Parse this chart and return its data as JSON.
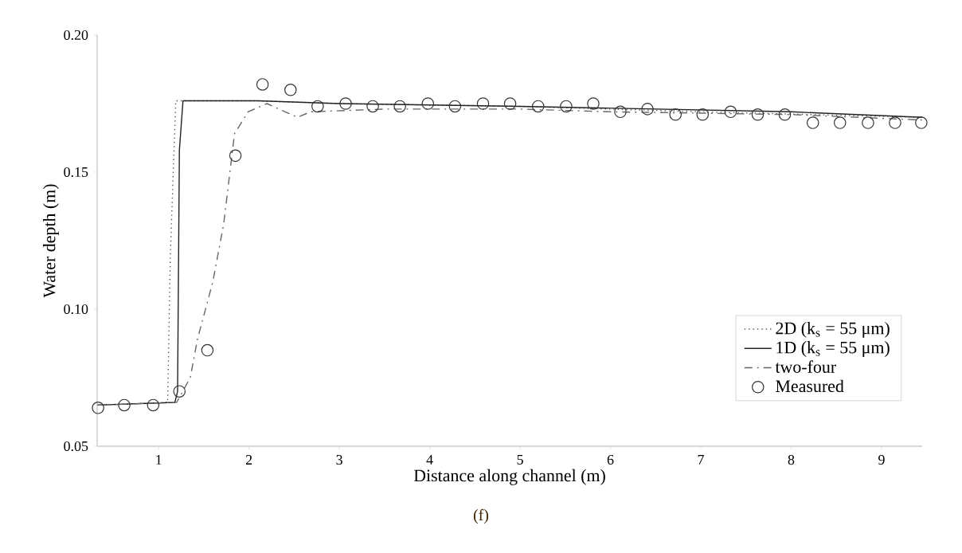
{
  "chart_data": {
    "type": "line",
    "xlabel": "Distance along channel (m)",
    "ylabel": "Water depth (m)",
    "xlim": [
      0.32,
      9.45
    ],
    "ylim": [
      0.05,
      0.2
    ],
    "xticks": [
      1,
      2,
      3,
      4,
      5,
      6,
      7,
      8,
      9
    ],
    "yticks": [
      {
        "value": 0.05,
        "label": "0.05"
      },
      {
        "value": 0.1,
        "label": "0.10"
      },
      {
        "value": 0.15,
        "label": "0.15"
      },
      {
        "value": 0.2,
        "label": "0.20"
      }
    ],
    "grid": false,
    "legend": "bottom right",
    "annotations": [
      "(f)"
    ],
    "series": [
      {
        "name": "2D (k$_{s}$ = 55 μm)",
        "line_style": "dotted",
        "marker": "none",
        "color": "#555555",
        "x": [
          0.32,
          1.1,
          1.13,
          1.19,
          2.1,
          3,
          5,
          7,
          9.45
        ],
        "values": [
          0.065,
          0.066,
          0.12,
          0.176,
          0.176,
          0.175,
          0.174,
          0.172,
          0.17
        ]
      },
      {
        "name": "1D (k$_{s}$ = 55 μm)",
        "line_style": "solid",
        "marker": "none",
        "color": "#222222",
        "x": [
          0.32,
          1.18,
          1.21,
          1.23,
          1.27,
          2.1,
          3,
          5,
          8,
          9.45
        ],
        "values": [
          0.065,
          0.066,
          0.07,
          0.158,
          0.176,
          0.176,
          0.175,
          0.174,
          0.172,
          0.17
        ]
      },
      {
        "name": "two-four",
        "line_style": "dashdot",
        "marker": "none",
        "color": "#666666",
        "x": [
          0.32,
          1.2,
          1.35,
          1.43,
          1.6,
          1.72,
          1.84,
          1.99,
          2.2,
          2.4,
          2.54,
          2.68,
          3.5,
          5,
          6,
          8,
          9.45
        ],
        "values": [
          0.065,
          0.066,
          0.075,
          0.089,
          0.11,
          0.131,
          0.164,
          0.172,
          0.175,
          0.172,
          0.17,
          0.172,
          0.173,
          0.173,
          0.172,
          0.171,
          0.169
        ]
      },
      {
        "name": "Measured",
        "type": "scatter",
        "marker": "circle",
        "color": "#333333",
        "x": [
          0.33,
          0.62,
          0.94,
          1.23,
          1.54,
          1.85,
          2.15,
          2.46,
          2.76,
          3.07,
          3.37,
          3.67,
          3.98,
          4.28,
          4.59,
          4.89,
          5.2,
          5.51,
          5.81,
          6.11,
          6.41,
          6.72,
          7.02,
          7.33,
          7.63,
          7.93,
          8.24,
          8.54,
          8.85,
          9.15,
          9.44
        ],
        "values": [
          0.064,
          0.065,
          0.065,
          0.07,
          0.085,
          0.156,
          0.182,
          0.18,
          0.174,
          0.175,
          0.174,
          0.174,
          0.175,
          0.174,
          0.175,
          0.175,
          0.174,
          0.174,
          0.175,
          0.172,
          0.173,
          0.171,
          0.171,
          0.172,
          0.171,
          0.171,
          0.168,
          0.168,
          0.168,
          0.168,
          0.168
        ]
      }
    ]
  }
}
